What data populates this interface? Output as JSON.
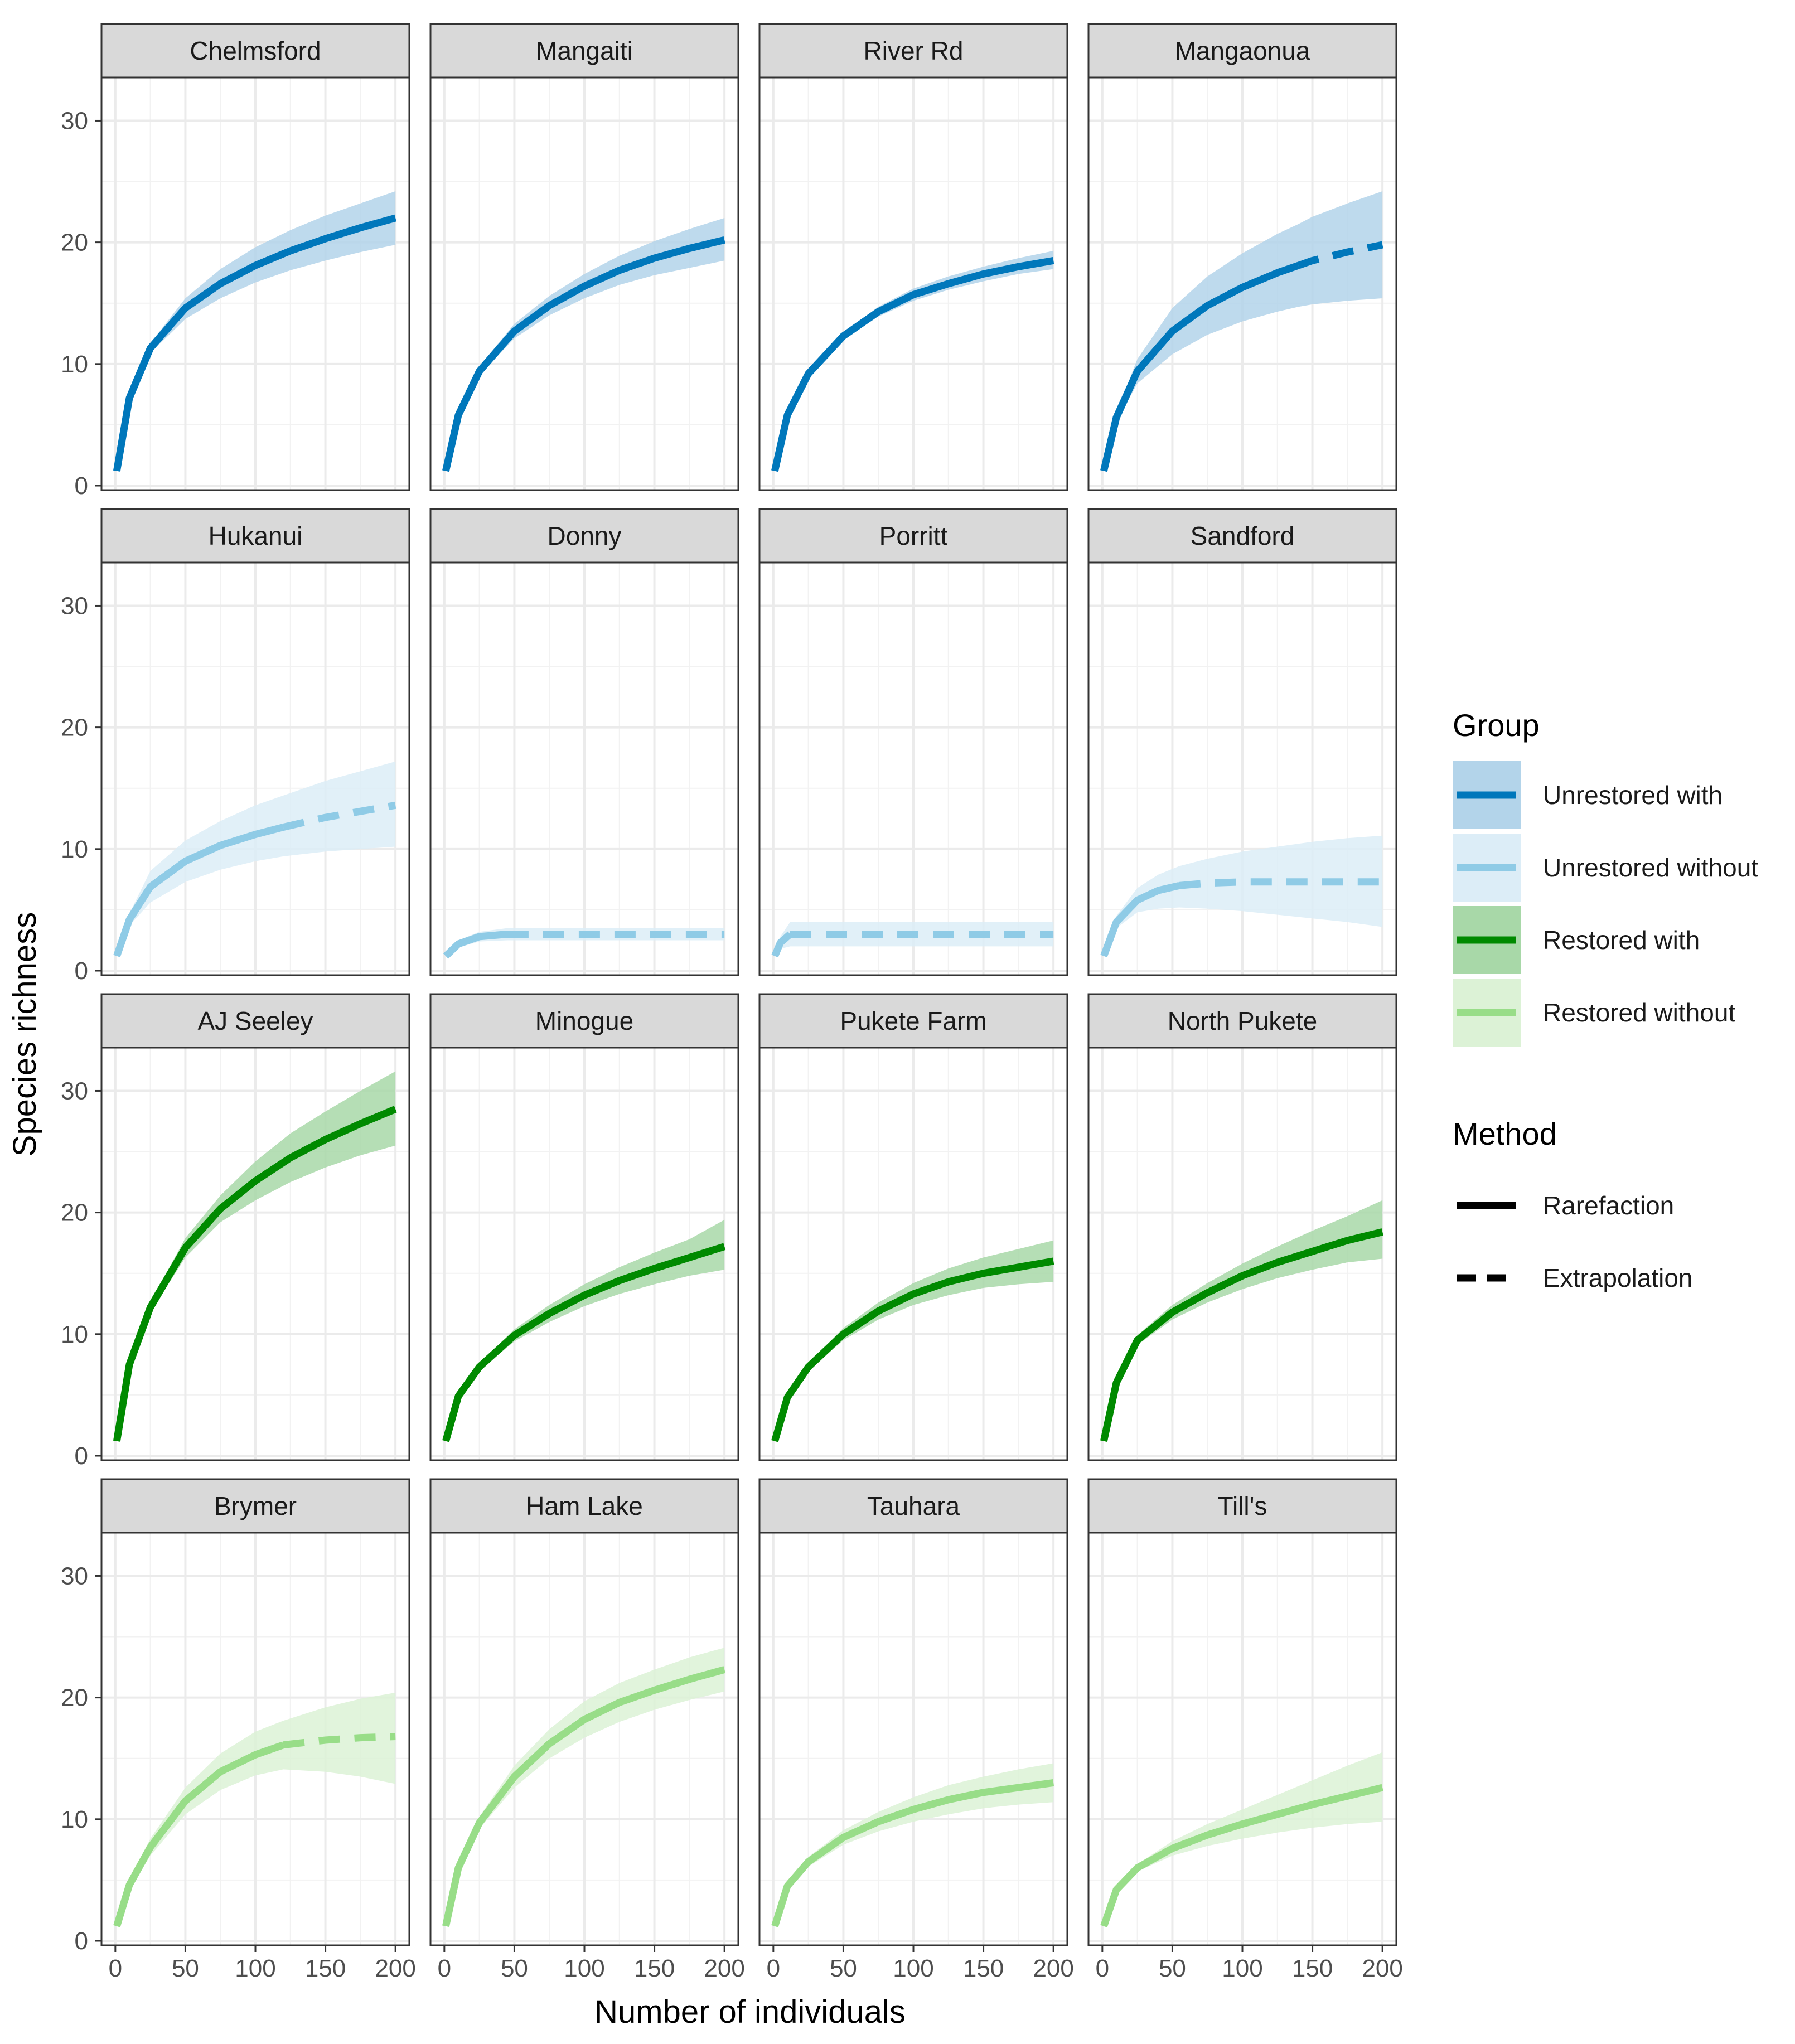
{
  "chart_data": {
    "type": "line",
    "title": "",
    "xlabel": "Number of individuals",
    "ylabel": "Species richness",
    "xlim": [
      0,
      200
    ],
    "ylim": [
      0,
      33
    ],
    "xticks": [
      0,
      50,
      100,
      150,
      200
    ],
    "yticks": [
      0,
      10,
      20,
      30
    ],
    "grid": true,
    "facet_layout": {
      "rows": 4,
      "cols": 4
    },
    "groups": [
      {
        "name": "Unrestored with",
        "line_color": "#0077bb",
        "band_color": "#b3d4ea"
      },
      {
        "name": "Unrestored without",
        "line_color": "#8fcbe6",
        "band_color": "#dcedf7"
      },
      {
        "name": "Restored with",
        "line_color": "#008a00",
        "band_color": "#a8d8a8"
      },
      {
        "name": "Restored without",
        "line_color": "#98dd88",
        "band_color": "#dcf2d6"
      }
    ],
    "legend": {
      "group_title": "Group",
      "group_entries": [
        "Unrestored with",
        "Unrestored without",
        "Restored with",
        "Restored without"
      ],
      "method_title": "Method",
      "method_entries": [
        "Rarefaction",
        "Extrapolation"
      ],
      "placement": "right"
    },
    "series": [
      {
        "name": "Chelmsford",
        "group": "Unrestored with",
        "observed_n": 200,
        "x": [
          1,
          10,
          25,
          50,
          75,
          100,
          125,
          150,
          175,
          200
        ],
        "y": [
          1.2,
          7.2,
          11.3,
          14.6,
          16.6,
          18.1,
          19.3,
          20.3,
          21.2,
          22.0
        ],
        "lower": [
          1.2,
          7.0,
          10.9,
          13.7,
          15.4,
          16.7,
          17.7,
          18.5,
          19.2,
          19.8
        ],
        "upper": [
          1.2,
          7.4,
          11.7,
          15.4,
          17.8,
          19.6,
          21.0,
          22.2,
          23.2,
          24.2
        ]
      },
      {
        "name": "Mangaiti",
        "group": "Unrestored with",
        "observed_n": 200,
        "x": [
          1,
          10,
          25,
          50,
          75,
          100,
          125,
          150,
          175,
          200
        ],
        "y": [
          1.2,
          5.8,
          9.4,
          12.7,
          14.8,
          16.4,
          17.7,
          18.7,
          19.5,
          20.2
        ],
        "lower": [
          1.2,
          5.6,
          9.1,
          12.1,
          14.0,
          15.4,
          16.5,
          17.3,
          17.9,
          18.5
        ],
        "upper": [
          1.2,
          6.0,
          9.8,
          13.3,
          15.6,
          17.4,
          18.9,
          20.1,
          21.1,
          22.0
        ]
      },
      {
        "name": "River Rd",
        "group": "Unrestored with",
        "observed_n": 200,
        "x": [
          1,
          10,
          25,
          50,
          75,
          100,
          125,
          150,
          175,
          200
        ],
        "y": [
          1.2,
          5.8,
          9.2,
          12.3,
          14.3,
          15.7,
          16.6,
          17.4,
          18.0,
          18.5
        ],
        "lower": [
          1.2,
          5.7,
          9.0,
          12.0,
          13.9,
          15.2,
          16.1,
          16.8,
          17.4,
          17.8
        ],
        "upper": [
          1.2,
          5.9,
          9.4,
          12.6,
          14.7,
          16.2,
          17.2,
          18.0,
          18.7,
          19.3
        ]
      },
      {
        "name": "Mangaonua",
        "group": "Unrestored with",
        "observed_n": 140,
        "x": [
          1,
          10,
          25,
          50,
          75,
          100,
          125,
          140,
          150,
          175,
          200
        ],
        "y": [
          1.2,
          5.6,
          9.4,
          12.7,
          14.8,
          16.3,
          17.5,
          18.1,
          18.5,
          19.2,
          19.8
        ],
        "lower": [
          1.2,
          5.2,
          8.4,
          10.8,
          12.4,
          13.5,
          14.3,
          14.7,
          14.9,
          15.2,
          15.4
        ],
        "upper": [
          1.2,
          6.0,
          10.4,
          14.6,
          17.2,
          19.1,
          20.7,
          21.5,
          22.1,
          23.2,
          24.2
        ]
      },
      {
        "name": "Hukanui",
        "group": "Unrestored without",
        "observed_n": 120,
        "x": [
          1,
          10,
          25,
          50,
          75,
          100,
          120,
          150,
          175,
          200
        ],
        "y": [
          1.2,
          4.2,
          6.9,
          9.0,
          10.3,
          11.2,
          11.8,
          12.6,
          13.1,
          13.6
        ],
        "lower": [
          1.2,
          3.7,
          5.6,
          7.3,
          8.3,
          9.0,
          9.4,
          9.8,
          10.0,
          10.2
        ],
        "upper": [
          1.2,
          4.7,
          8.2,
          10.7,
          12.3,
          13.6,
          14.4,
          15.6,
          16.4,
          17.2
        ]
      },
      {
        "name": "Donny",
        "group": "Unrestored without",
        "observed_n": 45,
        "x": [
          1,
          10,
          25,
          45,
          75,
          100,
          125,
          150,
          175,
          200
        ],
        "y": [
          1.2,
          2.2,
          2.8,
          3.0,
          3.0,
          3.0,
          3.0,
          3.0,
          3.0,
          3.0
        ],
        "lower": [
          1.2,
          1.9,
          2.4,
          2.5,
          2.5,
          2.5,
          2.5,
          2.5,
          2.5,
          2.5
        ],
        "upper": [
          1.2,
          2.5,
          3.2,
          3.5,
          3.5,
          3.5,
          3.5,
          3.5,
          3.5,
          3.5
        ]
      },
      {
        "name": "Porritt",
        "group": "Unrestored without",
        "observed_n": 12,
        "x": [
          1,
          5,
          12,
          25,
          50,
          75,
          100,
          125,
          150,
          175,
          200
        ],
        "y": [
          1.2,
          2.3,
          3.0,
          3.0,
          3.0,
          3.0,
          3.0,
          3.0,
          3.0,
          3.0,
          3.0
        ],
        "lower": [
          1.2,
          1.8,
          2.0,
          2.0,
          2.0,
          2.0,
          2.0,
          2.0,
          2.0,
          2.0,
          2.0
        ],
        "upper": [
          1.2,
          2.8,
          4.0,
          4.0,
          4.0,
          4.0,
          4.0,
          4.0,
          4.0,
          4.0,
          4.0
        ]
      },
      {
        "name": "Sandford",
        "group": "Unrestored without",
        "observed_n": 55,
        "x": [
          1,
          10,
          25,
          40,
          55,
          75,
          100,
          125,
          150,
          175,
          200
        ],
        "y": [
          1.2,
          4.0,
          5.8,
          6.6,
          7.0,
          7.2,
          7.3,
          7.3,
          7.3,
          7.3,
          7.3
        ],
        "lower": [
          1.2,
          3.5,
          4.8,
          5.1,
          5.2,
          5.1,
          4.9,
          4.6,
          4.3,
          4.0,
          3.6
        ],
        "upper": [
          1.2,
          4.5,
          6.8,
          7.9,
          8.6,
          9.2,
          9.8,
          10.2,
          10.6,
          10.9,
          11.1
        ]
      },
      {
        "name": "AJ Seeley",
        "group": "Restored with",
        "observed_n": 200,
        "x": [
          1,
          10,
          25,
          50,
          75,
          100,
          125,
          150,
          175,
          200
        ],
        "y": [
          1.2,
          7.5,
          12.2,
          17.1,
          20.3,
          22.6,
          24.5,
          26.0,
          27.3,
          28.5
        ],
        "lower": [
          1.2,
          7.3,
          11.8,
          16.3,
          19.2,
          21.0,
          22.5,
          23.7,
          24.7,
          25.5
        ],
        "upper": [
          1.2,
          7.7,
          12.6,
          17.9,
          21.4,
          24.2,
          26.5,
          28.3,
          30.0,
          31.6
        ]
      },
      {
        "name": "Minogue",
        "group": "Restored with",
        "observed_n": 200,
        "x": [
          1,
          10,
          25,
          50,
          75,
          100,
          125,
          150,
          175,
          200
        ],
        "y": [
          1.2,
          4.9,
          7.3,
          9.9,
          11.7,
          13.2,
          14.4,
          15.4,
          16.3,
          17.2
        ],
        "lower": [
          1.2,
          4.7,
          7.0,
          9.4,
          11.0,
          12.3,
          13.3,
          14.1,
          14.8,
          15.3
        ],
        "upper": [
          1.2,
          5.1,
          7.6,
          10.4,
          12.4,
          14.1,
          15.5,
          16.7,
          17.8,
          19.4
        ]
      },
      {
        "name": "Pukete Farm",
        "group": "Restored with",
        "observed_n": 200,
        "x": [
          1,
          10,
          25,
          50,
          75,
          100,
          125,
          150,
          175,
          200
        ],
        "y": [
          1.2,
          4.8,
          7.3,
          10.0,
          11.9,
          13.3,
          14.3,
          15.0,
          15.5,
          16.0
        ],
        "lower": [
          1.2,
          4.6,
          7.0,
          9.5,
          11.2,
          12.4,
          13.2,
          13.8,
          14.1,
          14.3
        ],
        "upper": [
          1.2,
          5.0,
          7.6,
          10.5,
          12.6,
          14.2,
          15.4,
          16.3,
          17.0,
          17.7
        ]
      },
      {
        "name": "North Pukete",
        "group": "Restored with",
        "observed_n": 200,
        "x": [
          1,
          10,
          25,
          50,
          75,
          100,
          125,
          150,
          175,
          200
        ],
        "y": [
          1.2,
          6.0,
          9.5,
          11.8,
          13.4,
          14.8,
          15.9,
          16.8,
          17.7,
          18.4
        ],
        "lower": [
          1.2,
          5.8,
          9.1,
          11.2,
          12.6,
          13.7,
          14.6,
          15.3,
          15.9,
          16.2
        ],
        "upper": [
          1.2,
          6.2,
          9.9,
          12.4,
          14.2,
          15.8,
          17.2,
          18.5,
          19.7,
          21.0
        ]
      },
      {
        "name": "Brymer",
        "group": "Restored without",
        "observed_n": 120,
        "x": [
          1,
          10,
          25,
          50,
          75,
          100,
          120,
          150,
          175,
          200
        ],
        "y": [
          1.2,
          4.6,
          7.7,
          11.5,
          13.9,
          15.3,
          16.1,
          16.5,
          16.7,
          16.8
        ],
        "lower": [
          1.2,
          4.2,
          7.0,
          10.4,
          12.4,
          13.6,
          14.1,
          13.9,
          13.5,
          12.9
        ],
        "upper": [
          1.2,
          5.0,
          8.4,
          12.6,
          15.4,
          17.2,
          18.1,
          19.2,
          19.9,
          20.4
        ]
      },
      {
        "name": "Ham Lake",
        "group": "Restored without",
        "observed_n": 200,
        "x": [
          1,
          10,
          25,
          50,
          75,
          100,
          125,
          150,
          175,
          200
        ],
        "y": [
          1.2,
          6.0,
          9.7,
          13.5,
          16.2,
          18.2,
          19.6,
          20.6,
          21.5,
          22.3
        ],
        "lower": [
          1.2,
          5.7,
          9.2,
          12.6,
          15.0,
          16.7,
          18.0,
          19.0,
          19.8,
          20.5
        ],
        "upper": [
          1.2,
          6.3,
          10.2,
          14.4,
          17.4,
          19.7,
          21.2,
          22.3,
          23.3,
          24.1
        ]
      },
      {
        "name": "Tauhara",
        "group": "Restored without",
        "observed_n": 200,
        "x": [
          1,
          10,
          25,
          50,
          75,
          100,
          125,
          150,
          175,
          200
        ],
        "y": [
          1.2,
          4.5,
          6.5,
          8.5,
          9.8,
          10.8,
          11.6,
          12.2,
          12.6,
          13.0
        ],
        "lower": [
          1.2,
          4.3,
          6.1,
          7.9,
          9.0,
          9.8,
          10.4,
          10.9,
          11.2,
          11.4
        ],
        "upper": [
          1.2,
          4.7,
          6.9,
          9.1,
          10.6,
          11.8,
          12.8,
          13.5,
          14.1,
          14.6
        ]
      },
      {
        "name": "Till's",
        "group": "Restored without",
        "observed_n": 200,
        "x": [
          1,
          10,
          25,
          50,
          75,
          100,
          125,
          150,
          175,
          200
        ],
        "y": [
          1.2,
          4.2,
          6.0,
          7.6,
          8.7,
          9.6,
          10.4,
          11.2,
          11.9,
          12.6
        ],
        "lower": [
          1.2,
          4.0,
          5.7,
          7.0,
          7.8,
          8.4,
          8.9,
          9.3,
          9.6,
          9.8
        ],
        "upper": [
          1.2,
          4.4,
          6.3,
          8.2,
          9.6,
          10.8,
          12.0,
          13.2,
          14.4,
          15.5
        ]
      }
    ]
  }
}
